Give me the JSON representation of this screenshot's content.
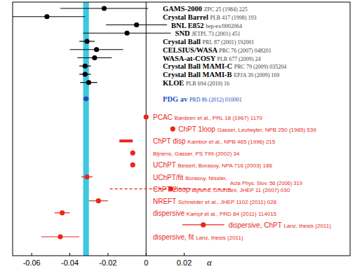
{
  "chart_data": {
    "type": "forest",
    "xlabel": "α",
    "xlim": [
      -0.07,
      0.107
    ],
    "xticks": [
      -0.06,
      -0.04,
      -0.02,
      0,
      0.02
    ],
    "band": {
      "center": -0.0315,
      "half_width": 0.0015,
      "color": "#3cc8e0"
    },
    "groups": [
      {
        "color": "#000000",
        "ref_color": "#444444",
        "entries": [
          {
            "name": "GAMS-2000",
            "ref": "ZPC 25 (1984) 225",
            "value": -0.022,
            "error": 0.023,
            "marker": "circle"
          },
          {
            "name": "Crystal Barrel",
            "ref": "PLB 417 (1998) 193",
            "value": -0.052,
            "error": 0.02,
            "marker": "circle"
          },
          {
            "name": "BNL E852",
            "ref": "hep-ex/0002064",
            "value": -0.005,
            "error": 0.016,
            "marker": "circle"
          },
          {
            "name": "SND",
            "ref": "JETPL 73 (2001) 451",
            "value": -0.01,
            "error": 0.023,
            "marker": "circle"
          },
          {
            "name": "Crystal Ball",
            "ref": "PRL 87 (2001) 192001",
            "value": -0.031,
            "error": 0.004,
            "marker": "circle"
          },
          {
            "name": "CELSIUS/WASA",
            "ref": "PRC 76 (2007) 048201",
            "value": -0.026,
            "error": 0.014,
            "marker": "circle"
          },
          {
            "name": "WASA-at-COSY",
            "ref": "PLB 677 (2009) 24",
            "value": -0.027,
            "error": 0.009,
            "marker": "circle"
          },
          {
            "name": "Crystal Ball MAMI-C",
            "ref": "PRC 79 (2009) 035204",
            "value": -0.032,
            "error": 0.003,
            "marker": "circle"
          },
          {
            "name": "Crystal Ball MAMI-B",
            "ref": "EPJA 39 (2009) 169",
            "value": -0.032,
            "error": 0.003,
            "marker": "circle"
          },
          {
            "name": "KLOE",
            "ref": "PLB 694 (2010) 16",
            "value": -0.0301,
            "error": 0.0045,
            "marker": "circle"
          }
        ]
      },
      {
        "color": "#2050c0",
        "ref_color": "#2050c0",
        "entries": [
          {
            "name": "PDG av",
            "ref": "PRD 86 (2012) 010001",
            "value": -0.0315,
            "error": 0.0015,
            "marker": "circle"
          }
        ]
      },
      {
        "color": "#e8261a",
        "ref_color": "#e8261a",
        "entries": [
          {
            "name": "PCAC",
            "ref": "Bardeen et al., PRL 18 (1967) 1170",
            "value": 0,
            "error": null,
            "marker": "circle"
          },
          {
            "name": "ChPT 1loop",
            "ref": "Gasser, Leutwyler, NPB 250 (1985) 539",
            "value": 0.014,
            "error": null,
            "marker": "circle"
          },
          {
            "name": "ChPT disp",
            "ref": "Kambor et al., NPB 465 (1996) 215",
            "value": -0.0105,
            "error": 0.0035,
            "marker": "bar"
          },
          {
            "ref": "Bijnens, Gasser, PS T99 (2002) 34",
            "value": -0.007,
            "error": null,
            "marker": "circle"
          },
          {
            "name": "UChPT",
            "ref": "Beisert, Borasoy, NPA 716 (2003) 186",
            "value": -0.007,
            "error": null,
            "marker": "circle"
          },
          {
            "name": "UChPT/fit",
            "ref": "Borasoy, Nissler,",
            "ref2": "Acta Phys. Slov. 56 (2006) 319",
            "value": -0.031,
            "error": 0.003,
            "marker": "circle"
          },
          {
            "name": "ChPT 2loop",
            "ref": "Bijnens, Ghorbani, JHEP 11 (2007) 030",
            "value": 0.013,
            "error": 0.032,
            "marker": "circle",
            "line_style": "dashed"
          },
          {
            "name": "NREFT",
            "ref": "Schneider et al., JHEP 1102 (2011) 028",
            "value": -0.025,
            "error": 0.005,
            "marker": "circle"
          },
          {
            "name": "dispersive",
            "ref": "Kampf et al., PRD 84 (2011) 114015",
            "value": -0.044,
            "error": 0.004,
            "marker": "circle"
          },
          {
            "name": "dispersive, ChPT",
            "ref": "Lanz, thesis (2011)",
            "value": 0.03,
            "error": 0.011,
            "marker": "circle"
          },
          {
            "name": "dispersive, fit",
            "ref": "Lanz, thesis (2011)",
            "value": -0.045,
            "error": 0.01,
            "marker": "circle"
          }
        ]
      }
    ]
  }
}
